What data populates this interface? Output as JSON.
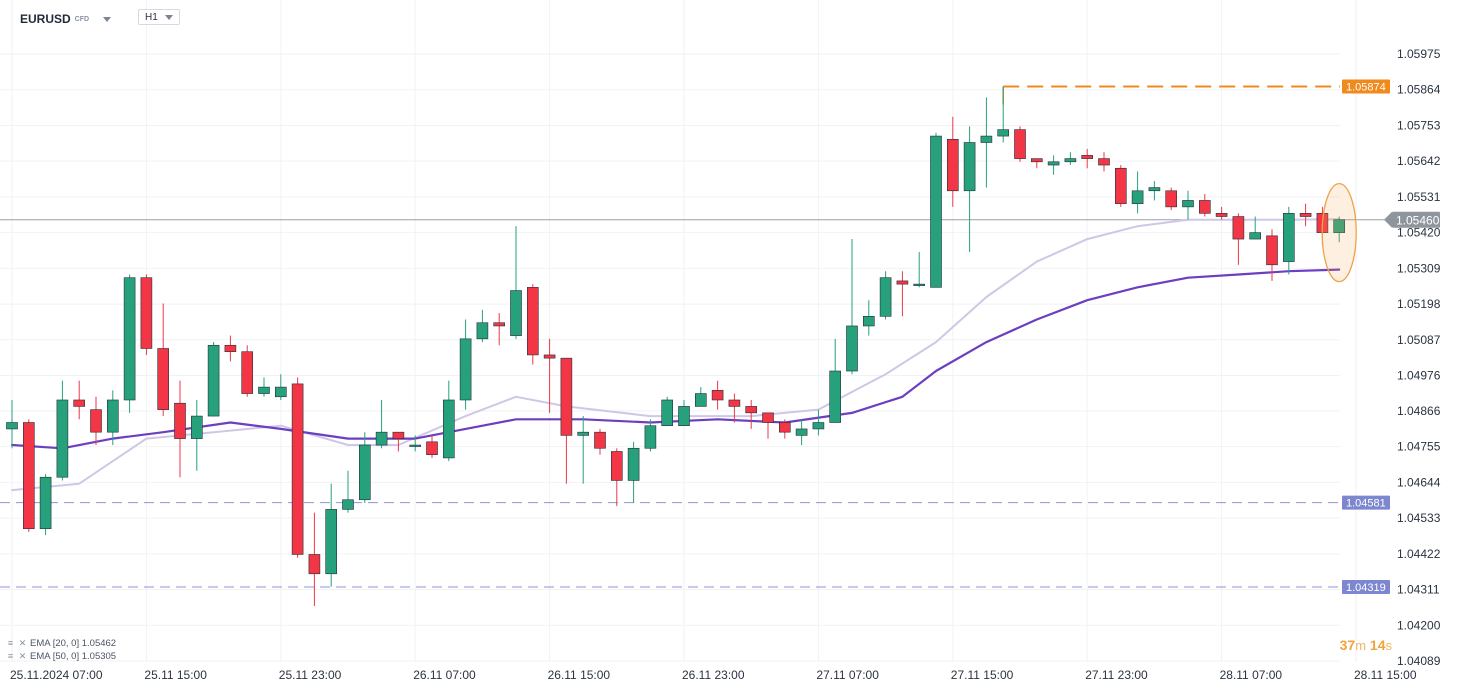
{
  "header": {
    "symbol": "EURUSD",
    "instrument_type": "CFD",
    "timeframe": "H1"
  },
  "colors": {
    "up": "#26a17b",
    "down": "#f23645",
    "ema20": "#cfc7e6",
    "ema50": "#6b3fc0",
    "high_line": "#f08a1c",
    "support_line": "#8f93d8",
    "current_line": "#9aa0a6"
  },
  "legend": [
    {
      "label": "EMA [20, 0] 1.05462"
    },
    {
      "label": "EMA [50, 0] 1.05305"
    }
  ],
  "timer": {
    "minutes": "37",
    "m": "m",
    "seconds": "14",
    "s": "s"
  },
  "chart_data": {
    "type": "candlestick",
    "ylim": [
      1.04089,
      1.0606
    ],
    "y_ticks": [
      "1.05975",
      "1.05864",
      "1.05753",
      "1.05642",
      "1.05531",
      "1.05420",
      "1.05309",
      "1.05198",
      "1.05087",
      "1.04976",
      "1.04866",
      "1.04755",
      "1.04644",
      "1.04533",
      "1.04422",
      "1.04311",
      "1.04200",
      "1.04089"
    ],
    "x_ticks": [
      {
        "label": "25.11.2024  07:00",
        "index": 0
      },
      {
        "label": "25.11  15:00",
        "index": 8
      },
      {
        "label": "25.11  23:00",
        "index": 16
      },
      {
        "label": "26.11  07:00",
        "index": 24
      },
      {
        "label": "26.11  15:00",
        "index": 32
      },
      {
        "label": "26.11  23:00",
        "index": 40
      },
      {
        "label": "27.11  07:00",
        "index": 48
      },
      {
        "label": "27.11  15:00",
        "index": 56
      },
      {
        "label": "27.11  23:00",
        "index": 64
      },
      {
        "label": "28.11  07:00",
        "index": 72
      },
      {
        "label": "28.11  15:00",
        "index": 80
      }
    ],
    "candles": [
      [
        1.0481,
        1.0483,
        1.049,
        1.0475
      ],
      [
        1.0483,
        1.045,
        1.0484,
        1.0449
      ],
      [
        1.045,
        1.0466,
        1.0467,
        1.0448
      ],
      [
        1.0466,
        1.049,
        1.0496,
        1.0465
      ],
      [
        1.049,
        1.0488,
        1.0496,
        1.0484
      ],
      [
        1.0487,
        1.048,
        1.0491,
        1.0476
      ],
      [
        1.048,
        1.049,
        1.0493,
        1.0476
      ],
      [
        1.049,
        1.0528,
        1.0529,
        1.0486
      ],
      [
        1.0528,
        1.0506,
        1.0529,
        1.0504
      ],
      [
        1.0506,
        1.0487,
        1.052,
        1.0485
      ],
      [
        1.0489,
        1.0478,
        1.0496,
        1.0466
      ],
      [
        1.0478,
        1.0485,
        1.049,
        1.0468
      ],
      [
        1.0485,
        1.0507,
        1.0508,
        1.0485
      ],
      [
        1.0507,
        1.0505,
        1.051,
        1.0502
      ],
      [
        1.0505,
        1.0492,
        1.0507,
        1.0491
      ],
      [
        1.0492,
        1.0494,
        1.0497,
        1.0491
      ],
      [
        1.0491,
        1.0494,
        1.0498,
        1.049
      ],
      [
        1.0495,
        1.0442,
        1.0497,
        1.0441
      ],
      [
        1.0442,
        1.0436,
        1.0455,
        1.0426
      ],
      [
        1.0436,
        1.0456,
        1.0464,
        1.0432
      ],
      [
        1.0456,
        1.0459,
        1.0468,
        1.0455
      ],
      [
        1.0459,
        1.0476,
        1.048,
        1.0458
      ],
      [
        1.0476,
        1.048,
        1.049,
        1.0475
      ],
      [
        1.048,
        1.0478,
        1.048,
        1.0474
      ],
      [
        1.0476,
        1.0476,
        1.0479,
        1.0474
      ],
      [
        1.0477,
        1.0473,
        1.0479,
        1.0472
      ],
      [
        1.0472,
        1.049,
        1.0496,
        1.0471
      ],
      [
        1.049,
        1.0509,
        1.0515,
        1.0487
      ],
      [
        1.0509,
        1.0514,
        1.0518,
        1.0508
      ],
      [
        1.0514,
        1.0513,
        1.0517,
        1.0507
      ],
      [
        1.051,
        1.0524,
        1.0544,
        1.0509
      ],
      [
        1.0525,
        1.0504,
        1.0526,
        1.0501
      ],
      [
        1.0504,
        1.0503,
        1.0509,
        1.0486
      ],
      [
        1.0503,
        1.0479,
        1.0503,
        1.0464
      ],
      [
        1.0479,
        1.048,
        1.0485,
        1.0464
      ],
      [
        1.048,
        1.0475,
        1.0481,
        1.0473
      ],
      [
        1.0474,
        1.0465,
        1.0475,
        1.0457
      ],
      [
        1.0465,
        1.0475,
        1.0477,
        1.0458
      ],
      [
        1.0475,
        1.0482,
        1.0484,
        1.0474
      ],
      [
        1.0482,
        1.049,
        1.0491,
        1.0482
      ],
      [
        1.0482,
        1.0488,
        1.049,
        1.0482
      ],
      [
        1.0488,
        1.0492,
        1.0494,
        1.0488
      ],
      [
        1.0493,
        1.049,
        1.0496,
        1.0487
      ],
      [
        1.049,
        1.0488,
        1.0492,
        1.0483
      ],
      [
        1.0488,
        1.0486,
        1.049,
        1.0481
      ],
      [
        1.0486,
        1.0483,
        1.0486,
        1.0478
      ],
      [
        1.0483,
        1.048,
        1.0484,
        1.0478
      ],
      [
        1.0479,
        1.0481,
        1.0484,
        1.0476
      ],
      [
        1.0481,
        1.0483,
        1.0487,
        1.0479
      ],
      [
        1.0483,
        1.0499,
        1.0509,
        1.0483
      ],
      [
        1.0499,
        1.0513,
        1.054,
        1.0498
      ],
      [
        1.0513,
        1.0516,
        1.0521,
        1.051
      ],
      [
        1.0516,
        1.0528,
        1.053,
        1.0515
      ],
      [
        1.0527,
        1.0526,
        1.053,
        1.0516
      ],
      [
        1.0526,
        1.0526,
        1.0536,
        1.0525
      ],
      [
        1.0525,
        1.0572,
        1.0573,
        1.0525
      ],
      [
        1.0571,
        1.0555,
        1.0578,
        1.055
      ],
      [
        1.0555,
        1.057,
        1.0575,
        1.0536
      ],
      [
        1.057,
        1.0572,
        1.0584,
        1.0556
      ],
      [
        1.0572,
        1.0574,
        1.05874,
        1.057
      ],
      [
        1.0574,
        1.0565,
        1.0575,
        1.0564
      ],
      [
        1.0565,
        1.0564,
        1.0565,
        1.0562
      ],
      [
        1.0563,
        1.0564,
        1.0566,
        1.056
      ],
      [
        1.0564,
        1.0565,
        1.0567,
        1.0563
      ],
      [
        1.0566,
        1.0565,
        1.0568,
        1.0562
      ],
      [
        1.0565,
        1.0563,
        1.0567,
        1.0561
      ],
      [
        1.0562,
        1.0551,
        1.0563,
        1.055
      ],
      [
        1.0551,
        1.0555,
        1.0561,
        1.0548
      ],
      [
        1.0555,
        1.0556,
        1.0558,
        1.0552
      ],
      [
        1.0555,
        1.055,
        1.0556,
        1.0549
      ],
      [
        1.055,
        1.0552,
        1.0555,
        1.0546
      ],
      [
        1.0552,
        1.0548,
        1.0554,
        1.0547
      ],
      [
        1.0548,
        1.0547,
        1.055,
        1.0546
      ],
      [
        1.0547,
        1.054,
        1.0548,
        1.0532
      ],
      [
        1.054,
        1.0542,
        1.0547,
        1.054
      ],
      [
        1.0541,
        1.0532,
        1.0543,
        1.0527
      ],
      [
        1.0533,
        1.0548,
        1.055,
        1.0529
      ],
      [
        1.0548,
        1.0547,
        1.0551,
        1.0544
      ],
      [
        1.0548,
        1.0542,
        1.055,
        1.0538
      ],
      [
        1.0542,
        1.0546,
        1.0547,
        1.0539
      ]
    ],
    "ema20": [
      [
        0,
        1.0462
      ],
      [
        4,
        1.0464
      ],
      [
        8,
        1.0478
      ],
      [
        12,
        1.048
      ],
      [
        16,
        1.0482
      ],
      [
        20,
        1.0476
      ],
      [
        23,
        1.0476
      ],
      [
        27,
        1.0485
      ],
      [
        30,
        1.0491
      ],
      [
        33,
        1.0488
      ],
      [
        38,
        1.0485
      ],
      [
        44,
        1.0485
      ],
      [
        48,
        1.0487
      ],
      [
        52,
        1.0498
      ],
      [
        55,
        1.0508
      ],
      [
        58,
        1.0522
      ],
      [
        61,
        1.0533
      ],
      [
        64,
        1.054
      ],
      [
        67,
        1.0544
      ],
      [
        70,
        1.0546
      ],
      [
        73,
        1.0546
      ],
      [
        76,
        1.0546
      ],
      [
        79,
        1.05462
      ]
    ],
    "ema50": [
      [
        0,
        1.0476
      ],
      [
        3,
        1.0475
      ],
      [
        6,
        1.0478
      ],
      [
        9,
        1.048
      ],
      [
        13,
        1.0483
      ],
      [
        16,
        1.0481
      ],
      [
        20,
        1.0478
      ],
      [
        24,
        1.0478
      ],
      [
        27,
        1.0481
      ],
      [
        30,
        1.0484
      ],
      [
        34,
        1.0484
      ],
      [
        38,
        1.0483
      ],
      [
        42,
        1.0484
      ],
      [
        46,
        1.0483
      ],
      [
        50,
        1.0486
      ],
      [
        53,
        1.0491
      ],
      [
        55,
        1.0499
      ],
      [
        58,
        1.0508
      ],
      [
        61,
        1.0515
      ],
      [
        64,
        1.0521
      ],
      [
        67,
        1.0525
      ],
      [
        70,
        1.0528
      ],
      [
        73,
        1.0529
      ],
      [
        76,
        1.053
      ],
      [
        79,
        1.05305
      ]
    ],
    "levels": [
      {
        "label": "1.05874",
        "value": 1.05874,
        "style": "high"
      },
      {
        "label": "1.05460",
        "value": 1.0546,
        "style": "current"
      },
      {
        "label": "1.04581",
        "value": 1.04581,
        "style": "support"
      },
      {
        "label": "1.04319",
        "value": 1.04319,
        "style": "support"
      }
    ],
    "high_from_index": 59,
    "highlight_index": 79
  }
}
